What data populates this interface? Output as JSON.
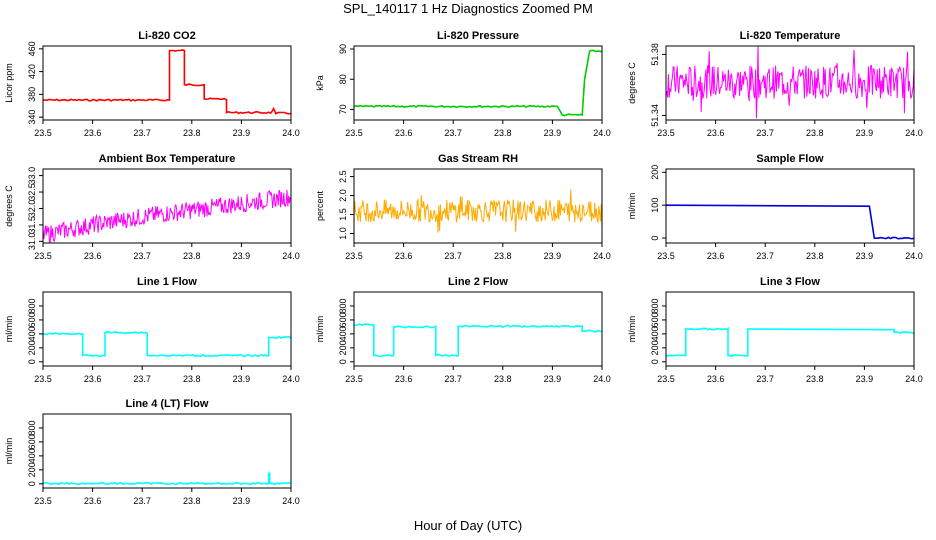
{
  "figure": {
    "title": "SPL_140117  1 Hz Diagnostics Zoomed PM",
    "xlabel": "Hour of Day (UTC)"
  },
  "chart_data": [
    {
      "type": "line",
      "title": "Li-820 CO2",
      "ylabel": "Licor ppm",
      "color": "#ff0000",
      "xlim": [
        23.5,
        24.0
      ],
      "ylim": [
        335,
        465
      ],
      "xticks": [
        "23.5",
        "23.6",
        "23.7",
        "23.8",
        "23.9",
        "24.0"
      ],
      "yticks": [
        340,
        380,
        420,
        460
      ],
      "series": [
        {
          "name": "CO2",
          "style": "step",
          "x": [
            23.5,
            23.755,
            23.755,
            23.785,
            23.785,
            23.825,
            23.825,
            23.87,
            23.87,
            23.96,
            23.965,
            23.97,
            23.97,
            24.0
          ],
          "y": [
            370,
            370,
            457,
            457,
            397,
            397,
            372,
            372,
            348,
            348,
            355,
            345,
            347,
            347
          ]
        }
      ]
    },
    {
      "type": "line",
      "title": "Li-820 Pressure",
      "ylabel": "kPa",
      "color": "#00cc00",
      "xlim": [
        23.5,
        24.0
      ],
      "ylim": [
        66.5,
        91
      ],
      "xticks": [
        "23.5",
        "23.6",
        "23.7",
        "23.8",
        "23.9",
        "24.0"
      ],
      "yticks": [
        70,
        80,
        90
      ],
      "series": [
        {
          "name": "Pressure",
          "style": "step",
          "x": [
            23.5,
            23.91,
            23.92,
            23.96,
            23.965,
            23.975,
            24.0
          ],
          "y": [
            71,
            71,
            68.2,
            68.2,
            80,
            89.3,
            89.3
          ]
        }
      ]
    },
    {
      "type": "line",
      "title": "Li-820 Temperature",
      "ylabel": "degrees C",
      "color": "#ff00ff",
      "xlim": [
        23.5,
        24.0
      ],
      "ylim": [
        51.337,
        51.3855
      ],
      "xticks": [
        "23.5",
        "23.6",
        "23.7",
        "23.8",
        "23.9",
        "24.0"
      ],
      "yticks": [
        "51.34",
        "51.38"
      ],
      "series": [
        {
          "name": "Temperature",
          "style": "noise",
          "center": 51.362,
          "spread": 0.022
        }
      ]
    },
    {
      "type": "line",
      "title": "Ambient Box Temperature",
      "ylabel": "degrees C",
      "color": "#ff00ff",
      "xlim": [
        23.5,
        24.0
      ],
      "ylim": [
        30.95,
        33.2
      ],
      "xticks": [
        "23.5",
        "23.6",
        "23.7",
        "23.8",
        "23.9",
        "24.0"
      ],
      "yticks": [
        "31.0",
        "31.5",
        "32.0",
        "32.5",
        "33.0"
      ],
      "series": [
        {
          "name": "Box Temp",
          "style": "noise-trend",
          "x": [
            23.5,
            23.6,
            23.7,
            23.8,
            23.9,
            24.0
          ],
          "y": [
            31.2,
            31.5,
            31.75,
            31.95,
            32.15,
            32.35
          ],
          "spread": 0.55
        }
      ]
    },
    {
      "type": "line",
      "title": "Gas Stream RH",
      "ylabel": "percent",
      "color": "#ffaa00",
      "xlim": [
        23.5,
        24.0
      ],
      "ylim": [
        0.75,
        2.7
      ],
      "xticks": [
        "23.5",
        "23.6",
        "23.7",
        "23.8",
        "23.9",
        "24.0"
      ],
      "yticks": [
        "1.0",
        "1.5",
        "2.0",
        "2.5"
      ],
      "series": [
        {
          "name": "RH",
          "style": "noise",
          "center": 1.6,
          "spread": 0.6
        }
      ]
    },
    {
      "type": "line",
      "title": "Sample Flow",
      "ylabel": "ml/min",
      "color": "#0000dd",
      "xlim": [
        23.5,
        24.0
      ],
      "ylim": [
        -15,
        210
      ],
      "xticks": [
        "23.5",
        "23.6",
        "23.7",
        "23.8",
        "23.9",
        "24.0"
      ],
      "yticks": [
        0,
        100,
        200
      ],
      "series": [
        {
          "name": "Sample Flow",
          "style": "step",
          "x": [
            23.5,
            23.91,
            23.91,
            23.92,
            24.0
          ],
          "y": [
            100,
            97,
            97,
            0,
            0
          ]
        }
      ]
    },
    {
      "type": "line",
      "title": "Line 1 Flow",
      "ylabel": "ml/min",
      "color": "#00ffff",
      "xlim": [
        23.5,
        24.0
      ],
      "ylim": [
        -60,
        1000
      ],
      "xticks": [
        "23.5",
        "23.6",
        "23.7",
        "23.8",
        "23.9",
        "24.0"
      ],
      "yticks": [
        0,
        200,
        400,
        600,
        800
      ],
      "series": [
        {
          "name": "Line 1",
          "style": "step",
          "x": [
            23.5,
            23.58,
            23.58,
            23.625,
            23.625,
            23.71,
            23.71,
            23.955,
            23.955,
            24.0
          ],
          "y": [
            400,
            400,
            90,
            90,
            420,
            420,
            90,
            90,
            350,
            350
          ]
        }
      ]
    },
    {
      "type": "line",
      "title": "Line 2 Flow",
      "ylabel": "ml/min",
      "color": "#00ffff",
      "xlim": [
        23.5,
        24.0
      ],
      "ylim": [
        -60,
        1000
      ],
      "xticks": [
        "23.5",
        "23.6",
        "23.7",
        "23.8",
        "23.9",
        "24.0"
      ],
      "yticks": [
        0,
        200,
        400,
        600,
        800
      ],
      "series": [
        {
          "name": "Line 2",
          "style": "step",
          "x": [
            23.5,
            23.54,
            23.54,
            23.58,
            23.58,
            23.665,
            23.665,
            23.71,
            23.71,
            23.96,
            23.96,
            24.0
          ],
          "y": [
            530,
            530,
            90,
            90,
            500,
            500,
            90,
            90,
            510,
            510,
            440,
            440
          ]
        }
      ]
    },
    {
      "type": "line",
      "title": "Line 3 Flow",
      "ylabel": "ml/min",
      "color": "#00ffff",
      "xlim": [
        23.5,
        24.0
      ],
      "ylim": [
        -60,
        1000
      ],
      "xticks": [
        "23.5",
        "23.6",
        "23.7",
        "23.8",
        "23.9",
        "24.0"
      ],
      "yticks": [
        0,
        200,
        400,
        600,
        800
      ],
      "series": [
        {
          "name": "Line 3",
          "style": "step",
          "x": [
            23.5,
            23.54,
            23.54,
            23.625,
            23.625,
            23.665,
            23.665,
            23.96,
            23.96,
            24.0
          ],
          "y": [
            90,
            90,
            470,
            470,
            90,
            90,
            470,
            460,
            420,
            420
          ]
        }
      ]
    },
    {
      "type": "line",
      "title": "Line 4 (LT) Flow",
      "ylabel": "ml/min",
      "color": "#00ffff",
      "xlim": [
        23.5,
        24.0
      ],
      "ylim": [
        -60,
        1000
      ],
      "xticks": [
        "23.5",
        "23.6",
        "23.7",
        "23.8",
        "23.9",
        "24.0"
      ],
      "yticks": [
        0,
        200,
        400,
        600,
        800
      ],
      "series": [
        {
          "name": "Line 4",
          "style": "step",
          "x": [
            23.5,
            23.955,
            23.955,
            23.957,
            23.957,
            24.0
          ],
          "y": [
            5,
            5,
            150,
            150,
            5,
            5
          ]
        }
      ]
    }
  ]
}
